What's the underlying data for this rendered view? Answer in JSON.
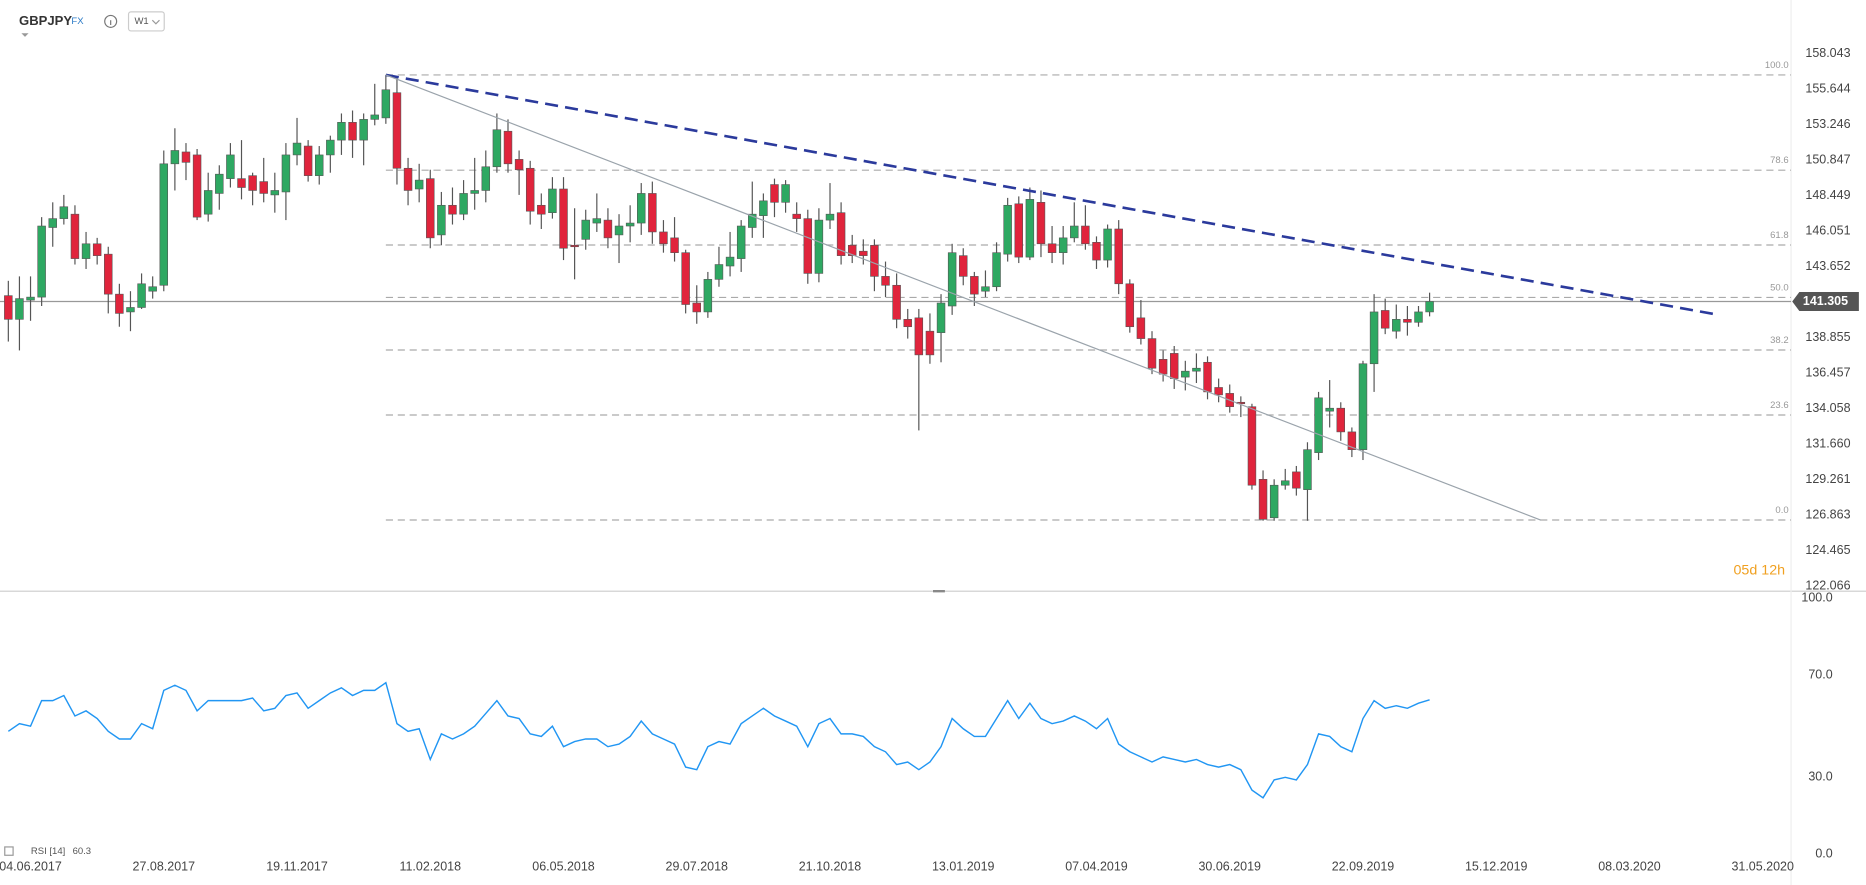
{
  "header": {
    "symbol": "GBPJPY",
    "market": "FX",
    "timeframe": "W1"
  },
  "chart_data": [
    {
      "type": "candlestick",
      "xlim": [
        -0.75,
        160.55
      ],
      "xticks": [
        {
          "value": 2,
          "label": "04.06.2017"
        },
        {
          "value": 14,
          "label": "27.08.2017"
        },
        {
          "value": 26,
          "label": "19.11.2017"
        },
        {
          "value": 38,
          "label": "11.02.2018"
        },
        {
          "value": 50,
          "label": "06.05.2018"
        },
        {
          "value": 62,
          "label": "29.07.2018"
        },
        {
          "value": 74,
          "label": "21.10.2018"
        },
        {
          "value": 86,
          "label": "13.01.2019"
        },
        {
          "value": 98,
          "label": "07.04.2019"
        },
        {
          "value": 110,
          "label": "30.06.2019"
        },
        {
          "value": 122,
          "label": "22.09.2019"
        },
        {
          "value": 134,
          "label": "15.12.2019"
        },
        {
          "value": 146,
          "label": "08.03.2020"
        },
        {
          "value": 158,
          "label": "31.05.2020"
        }
      ],
      "ylim": [
        121.745,
        161.66
      ],
      "yticks": [
        158.043,
        155.644,
        153.246,
        150.847,
        148.449,
        146.051,
        143.652,
        138.855,
        136.457,
        134.058,
        {
          "value": 131.66,
          "label": "131.660"
        },
        129.261,
        126.863,
        124.465,
        122.066
      ],
      "colors": {
        "up": "#2ea862",
        "down": "#e0243c"
      },
      "ohlc": [
        [
          141.7,
          142.7,
          138.6,
          140.1
        ],
        [
          140.1,
          143.0,
          138.0,
          141.5
        ],
        [
          141.4,
          143.0,
          140.0,
          141.6
        ],
        [
          141.6,
          147.0,
          141.0,
          146.4
        ],
        [
          146.3,
          148.0,
          145.0,
          146.9
        ],
        [
          146.9,
          148.5,
          146.5,
          147.7
        ],
        [
          147.2,
          147.8,
          143.8,
          144.2
        ],
        [
          144.2,
          146.0,
          143.5,
          145.2
        ],
        [
          145.2,
          145.6,
          143.8,
          144.4
        ],
        [
          144.5,
          145.0,
          140.5,
          141.8
        ],
        [
          141.8,
          142.5,
          139.6,
          140.5
        ],
        [
          140.6,
          142.0,
          139.3,
          140.9
        ],
        [
          140.9,
          143.2,
          140.8,
          142.5
        ],
        [
          142.0,
          143.0,
          141.5,
          142.3
        ],
        [
          142.4,
          151.5,
          142.0,
          150.6
        ],
        [
          150.6,
          153.0,
          148.8,
          151.5
        ],
        [
          151.4,
          152.0,
          149.5,
          150.7
        ],
        [
          151.2,
          151.6,
          146.8,
          147.0
        ],
        [
          147.2,
          150.0,
          146.7,
          148.8
        ],
        [
          148.6,
          150.5,
          147.5,
          149.9
        ],
        [
          149.6,
          152.0,
          149.0,
          151.2
        ],
        [
          149.6,
          152.2,
          148.2,
          149.0
        ],
        [
          149.8,
          150.0,
          147.8,
          148.8
        ],
        [
          149.4,
          151.0,
          148.0,
          148.6
        ],
        [
          148.5,
          150.0,
          147.3,
          148.8
        ],
        [
          148.7,
          152.0,
          146.8,
          151.2
        ],
        [
          151.2,
          153.7,
          150.5,
          152.0
        ],
        [
          151.8,
          152.2,
          149.4,
          149.8
        ],
        [
          149.8,
          151.8,
          149.2,
          151.2
        ],
        [
          151.2,
          152.5,
          150.0,
          152.2
        ],
        [
          152.2,
          154.0,
          151.2,
          153.4
        ],
        [
          153.4,
          154.2,
          151.0,
          152.2
        ],
        [
          152.2,
          154.0,
          150.5,
          153.6
        ],
        [
          153.6,
          156.0,
          153.2,
          153.9
        ],
        [
          153.7,
          156.6,
          153.3,
          155.6
        ],
        [
          155.4,
          156.5,
          149.2,
          150.3
        ],
        [
          150.3,
          151.0,
          147.8,
          148.8
        ],
        [
          148.9,
          150.6,
          148.0,
          149.5
        ],
        [
          149.6,
          150.2,
          144.9,
          145.6
        ],
        [
          145.8,
          148.7,
          145.1,
          147.8
        ],
        [
          147.8,
          149.0,
          146.5,
          147.2
        ],
        [
          147.2,
          149.5,
          146.8,
          148.6
        ],
        [
          148.6,
          151.0,
          147.5,
          148.8
        ],
        [
          148.8,
          151.5,
          148.0,
          150.4
        ],
        [
          150.4,
          154.0,
          150.0,
          152.9
        ],
        [
          152.8,
          153.6,
          150.0,
          150.6
        ],
        [
          150.9,
          151.5,
          148.5,
          150.2
        ],
        [
          150.3,
          150.8,
          146.5,
          147.4
        ],
        [
          147.8,
          148.6,
          146.2,
          147.2
        ],
        [
          147.3,
          149.7,
          146.9,
          148.9
        ],
        [
          148.9,
          149.7,
          144.1,
          144.9
        ],
        [
          145.1,
          147.6,
          142.8,
          145.0
        ],
        [
          145.5,
          147.5,
          144.8,
          146.8
        ],
        [
          146.6,
          148.6,
          146.0,
          146.9
        ],
        [
          146.8,
          147.6,
          144.9,
          145.6
        ],
        [
          145.8,
          147.2,
          143.9,
          146.4
        ],
        [
          146.4,
          147.8,
          145.3,
          146.6
        ],
        [
          146.6,
          149.3,
          145.8,
          148.6
        ],
        [
          148.6,
          149.4,
          145.2,
          146.0
        ],
        [
          146.0,
          146.8,
          144.6,
          145.2
        ],
        [
          145.6,
          147.0,
          144.0,
          144.6
        ],
        [
          144.6,
          144.8,
          140.5,
          141.1
        ],
        [
          141.2,
          142.4,
          139.8,
          140.6
        ],
        [
          140.6,
          143.3,
          140.2,
          142.8
        ],
        [
          142.8,
          145.0,
          142.3,
          143.8
        ],
        [
          143.7,
          146.0,
          143.0,
          144.3
        ],
        [
          144.2,
          146.8,
          143.3,
          146.4
        ],
        [
          146.3,
          149.4,
          145.6,
          147.2
        ],
        [
          147.1,
          148.6,
          145.6,
          148.1
        ],
        [
          149.2,
          149.6,
          147.0,
          148.0
        ],
        [
          148.0,
          149.5,
          147.3,
          149.2
        ],
        [
          147.2,
          148.0,
          146.0,
          146.9
        ],
        [
          146.9,
          147.5,
          142.5,
          143.2
        ],
        [
          143.2,
          147.6,
          142.6,
          146.8
        ],
        [
          146.8,
          149.3,
          146.2,
          147.2
        ],
        [
          147.3,
          148.0,
          143.8,
          144.4
        ],
        [
          145.1,
          145.8,
          143.9,
          144.4
        ],
        [
          144.7,
          145.5,
          143.8,
          144.4
        ],
        [
          145.1,
          145.5,
          142.0,
          143.0
        ],
        [
          143.0,
          144.0,
          141.6,
          142.4
        ],
        [
          142.4,
          143.2,
          139.5,
          140.1
        ],
        [
          140.1,
          140.8,
          138.8,
          139.6
        ],
        [
          140.2,
          140.8,
          132.6,
          137.7
        ],
        [
          139.3,
          140.5,
          137.1,
          137.7
        ],
        [
          139.2,
          141.8,
          137.2,
          141.2
        ],
        [
          141.0,
          145.2,
          140.4,
          144.6
        ],
        [
          144.4,
          144.9,
          142.4,
          143.0
        ],
        [
          143.0,
          143.3,
          141.0,
          141.8
        ],
        [
          142.0,
          143.4,
          141.6,
          142.3
        ],
        [
          142.3,
          145.3,
          142.0,
          144.6
        ],
        [
          144.5,
          148.3,
          144.0,
          147.8
        ],
        [
          147.9,
          148.4,
          143.9,
          144.3
        ],
        [
          144.3,
          149.0,
          144.1,
          148.2
        ],
        [
          148.0,
          148.8,
          144.3,
          145.2
        ],
        [
          145.2,
          146.4,
          143.9,
          144.6
        ],
        [
          144.6,
          146.4,
          143.8,
          145.6
        ],
        [
          145.6,
          148.0,
          145.3,
          146.4
        ],
        [
          146.4,
          147.8,
          144.8,
          145.2
        ],
        [
          145.3,
          145.7,
          143.5,
          144.1
        ],
        [
          144.1,
          146.5,
          143.6,
          146.2
        ],
        [
          146.2,
          146.8,
          141.8,
          142.5
        ],
        [
          142.5,
          142.8,
          139.2,
          139.6
        ],
        [
          140.2,
          141.4,
          138.4,
          138.8
        ],
        [
          138.8,
          139.3,
          136.4,
          136.8
        ],
        [
          137.4,
          138.0,
          135.9,
          136.4
        ],
        [
          137.8,
          138.3,
          135.4,
          136.1
        ],
        [
          136.2,
          137.3,
          135.3,
          136.6
        ],
        [
          136.6,
          137.8,
          135.8,
          136.8
        ],
        [
          137.2,
          137.6,
          134.7,
          135.2
        ],
        [
          135.5,
          136.1,
          134.5,
          135.0
        ],
        [
          135.1,
          135.7,
          133.8,
          134.2
        ],
        [
          134.5,
          134.9,
          133.5,
          134.4
        ],
        [
          134.2,
          134.4,
          128.6,
          128.9
        ],
        [
          129.3,
          129.9,
          126.5,
          126.6
        ],
        [
          126.7,
          129.3,
          126.5,
          128.9
        ],
        [
          128.9,
          130.0,
          128.6,
          129.2
        ],
        [
          129.8,
          130.2,
          128.2,
          128.7
        ],
        [
          128.6,
          131.8,
          126.5,
          131.3
        ],
        [
          131.1,
          135.2,
          130.6,
          134.8
        ],
        [
          133.9,
          136.0,
          132.8,
          134.1
        ],
        [
          134.1,
          134.5,
          131.9,
          132.5
        ],
        [
          132.5,
          132.8,
          130.8,
          131.3
        ],
        [
          131.3,
          137.3,
          130.6,
          137.1
        ],
        [
          137.1,
          141.8,
          135.2,
          140.6
        ],
        [
          140.7,
          141.5,
          139.1,
          139.5
        ],
        [
          139.3,
          141.1,
          138.8,
          140.1
        ],
        [
          140.1,
          141.0,
          139.0,
          139.9
        ],
        [
          139.9,
          141.0,
          139.6,
          140.6
        ],
        [
          140.6,
          141.9,
          140.3,
          141.305
        ]
      ],
      "last_price": 141.305,
      "fib": {
        "x": 34,
        "levels": [
          {
            "name": "100.0",
            "price": 156.6
          },
          {
            "name": "78.6",
            "price": 150.17
          },
          {
            "name": "61.8",
            "price": 145.12
          },
          {
            "name": "50.0",
            "price": 141.58
          },
          {
            "name": "38.2",
            "price": 138.03
          },
          {
            "name": "23.6",
            "price": 133.64
          },
          {
            "name": "0.0",
            "price": 126.55
          }
        ]
      },
      "trendlines": [
        {
          "color": "#2b3a9c",
          "dashed": true,
          "points": [
            [
              34,
              156.6
            ],
            [
              153.6,
              140.46
            ]
          ]
        },
        {
          "color": "#9aa3ab",
          "dashed": false,
          "points": [
            [
              34,
              156.6
            ],
            [
              138,
              126.55
            ]
          ]
        }
      ],
      "countdown": "05d 12h"
    },
    {
      "type": "line",
      "name": "RSI [14]",
      "last_value": 60.3,
      "color": "#2196f3",
      "ylim": [
        0,
        100
      ],
      "yticks": [
        {
          "value": 100,
          "label": "100.0"
        },
        {
          "value": 70,
          "label": "70.0"
        },
        {
          "value": 30,
          "label": "30.0"
        },
        {
          "value": 0,
          "label": "0.0"
        }
      ],
      "values": [
        48,
        51,
        50,
        60,
        60,
        62,
        54,
        56,
        53,
        48,
        45,
        45,
        51,
        49,
        64,
        66,
        64,
        56,
        60,
        60,
        60,
        60,
        61,
        56,
        57,
        62,
        63,
        57,
        60,
        63,
        65,
        62,
        64,
        64,
        67,
        51,
        48,
        49,
        37,
        47,
        45,
        47,
        50,
        55,
        60,
        54,
        53,
        47,
        46,
        50,
        42,
        44,
        45,
        45,
        42,
        43,
        46,
        52,
        47,
        45,
        43,
        34,
        33,
        42,
        44,
        43,
        51,
        54,
        57,
        54,
        52,
        50,
        42,
        51,
        53,
        47,
        47,
        46,
        42,
        40,
        35,
        36,
        33,
        36,
        42,
        53,
        49,
        46,
        46,
        53,
        60,
        53,
        59,
        53,
        51,
        52,
        54,
        52,
        49,
        53,
        43,
        40,
        38,
        36,
        38,
        37,
        36,
        37,
        35,
        34,
        35,
        33,
        25,
        22,
        29,
        30,
        29,
        35,
        47,
        46,
        42,
        40,
        53,
        60,
        57,
        58,
        57,
        59,
        60.3
      ]
    }
  ]
}
